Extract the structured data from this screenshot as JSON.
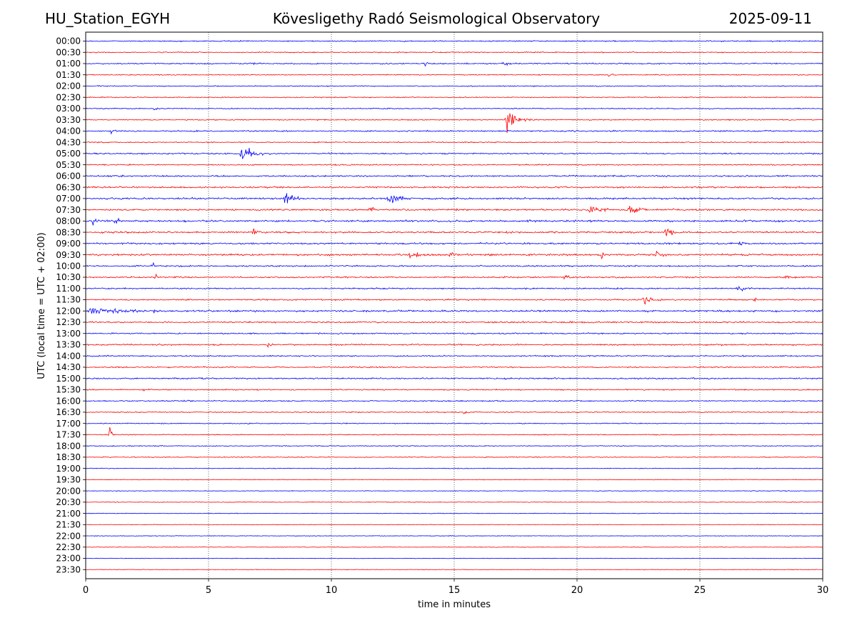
{
  "header": {
    "station": "HU_Station_EGYH",
    "title": "Kövesligethy Radó Seismological Observatory",
    "date": "2025-09-11"
  },
  "chart_data": {
    "type": "line",
    "title": "Kövesligethy Radó Seismological Observatory",
    "xlabel": "time in minutes",
    "ylabel": "UTC (local time = UTC + 02:00)",
    "xlim": [
      0,
      30
    ],
    "x_ticks": [
      0,
      5,
      10,
      15,
      20,
      25,
      30
    ],
    "grid_x": true,
    "colors": [
      "#0000ff",
      "#ff0000"
    ],
    "rows": [
      {
        "label": "00:00",
        "noise": 0.6,
        "events": []
      },
      {
        "label": "00:30",
        "noise": 0.55,
        "events": []
      },
      {
        "label": "01:00",
        "noise": 0.65,
        "events": [
          [
            13.8,
            0.35,
            1.6
          ],
          [
            17.0,
            0.6,
            1.4
          ],
          [
            6.7,
            0.4,
            1.3
          ]
        ]
      },
      {
        "label": "01:30",
        "noise": 0.5,
        "events": [
          [
            21.3,
            0.5,
            1.2
          ]
        ]
      },
      {
        "label": "02:00",
        "noise": 0.5,
        "events": []
      },
      {
        "label": "02:30",
        "noise": 0.5,
        "events": []
      },
      {
        "label": "03:00",
        "noise": 0.55,
        "events": [
          [
            2.8,
            0.4,
            1.2
          ]
        ]
      },
      {
        "label": "03:30",
        "noise": 0.55,
        "events": [
          [
            17.1,
            1.2,
            6.0
          ]
        ]
      },
      {
        "label": "04:00",
        "noise": 0.7,
        "events": [
          [
            1.0,
            0.8,
            1.3
          ]
        ]
      },
      {
        "label": "04:30",
        "noise": 0.55,
        "events": []
      },
      {
        "label": "05:00",
        "noise": 0.7,
        "events": [
          [
            6.3,
            1.5,
            5.0
          ]
        ]
      },
      {
        "label": "05:30",
        "noise": 0.6,
        "events": []
      },
      {
        "label": "06:00",
        "noise": 0.8,
        "events": []
      },
      {
        "label": "06:30",
        "noise": 0.8,
        "events": []
      },
      {
        "label": "07:00",
        "noise": 0.9,
        "events": [
          [
            8.1,
            1.5,
            2.2
          ],
          [
            12.3,
            1.5,
            2.8
          ]
        ]
      },
      {
        "label": "07:30",
        "noise": 0.85,
        "events": [
          [
            20.5,
            1.5,
            2.0
          ],
          [
            22.1,
            1.5,
            2.2
          ],
          [
            11.5,
            1.0,
            1.8
          ]
        ]
      },
      {
        "label": "08:00",
        "noise": 0.95,
        "events": [
          [
            0.3,
            1.2,
            2.0
          ],
          [
            1.2,
            0.8,
            2.2
          ]
        ]
      },
      {
        "label": "08:30",
        "noise": 0.9,
        "events": [
          [
            23.6,
            0.8,
            3.2
          ],
          [
            6.8,
            0.8,
            1.7
          ]
        ]
      },
      {
        "label": "09:00",
        "noise": 0.85,
        "events": [
          [
            26.6,
            0.5,
            1.6
          ]
        ]
      },
      {
        "label": "09:30",
        "noise": 0.95,
        "events": [
          [
            13.2,
            1.8,
            1.8
          ],
          [
            14.8,
            0.8,
            1.9
          ],
          [
            21.0,
            0.4,
            1.9
          ],
          [
            23.2,
            1.0,
            2.2
          ]
        ]
      },
      {
        "label": "10:00",
        "noise": 0.75,
        "events": [
          [
            2.7,
            0.4,
            1.6
          ]
        ]
      },
      {
        "label": "10:30",
        "noise": 0.75,
        "events": [
          [
            19.5,
            0.7,
            2.5
          ],
          [
            28.5,
            0.3,
            2.2
          ],
          [
            2.8,
            0.4,
            1.6
          ]
        ]
      },
      {
        "label": "11:00",
        "noise": 0.7,
        "events": [
          [
            26.5,
            1.2,
            1.5
          ]
        ]
      },
      {
        "label": "11:30",
        "noise": 0.7,
        "events": [
          [
            22.7,
            1.2,
            2.4
          ],
          [
            27.2,
            0.5,
            1.6
          ]
        ]
      },
      {
        "label": "12:00",
        "noise": 0.9,
        "events": [
          [
            0.1,
            5.5,
            1.6
          ],
          [
            2.8,
            0.6,
            1.6
          ]
        ]
      },
      {
        "label": "12:30",
        "noise": 0.75,
        "events": []
      },
      {
        "label": "13:00",
        "noise": 0.7,
        "events": []
      },
      {
        "label": "13:30",
        "noise": 0.75,
        "events": [
          [
            7.4,
            0.6,
            1.3
          ]
        ]
      },
      {
        "label": "14:00",
        "noise": 0.65,
        "events": []
      },
      {
        "label": "14:30",
        "noise": 0.65,
        "events": []
      },
      {
        "label": "15:00",
        "noise": 0.7,
        "events": []
      },
      {
        "label": "15:30",
        "noise": 0.6,
        "events": [
          [
            2.4,
            0.5,
            1.5
          ]
        ]
      },
      {
        "label": "16:00",
        "noise": 0.6,
        "events": [
          [
            4.0,
            0.4,
            1.3
          ]
        ]
      },
      {
        "label": "16:30",
        "noise": 0.55,
        "events": [
          [
            15.4,
            0.6,
            1.3
          ]
        ]
      },
      {
        "label": "17:00",
        "noise": 0.5,
        "events": []
      },
      {
        "label": "17:30",
        "noise": 0.5,
        "events": [
          [
            0.95,
            0.4,
            3.0
          ]
        ]
      },
      {
        "label": "18:00",
        "noise": 0.45,
        "events": []
      },
      {
        "label": "18:30",
        "noise": 0.45,
        "events": []
      },
      {
        "label": "19:00",
        "noise": 0.4,
        "events": []
      },
      {
        "label": "19:30",
        "noise": 0.35,
        "events": []
      },
      {
        "label": "20:00",
        "noise": 0.35,
        "events": []
      },
      {
        "label": "20:30",
        "noise": 0.35,
        "events": []
      },
      {
        "label": "21:00",
        "noise": 0.35,
        "events": []
      },
      {
        "label": "21:30",
        "noise": 0.3,
        "events": []
      },
      {
        "label": "22:00",
        "noise": 0.3,
        "events": []
      },
      {
        "label": "22:30",
        "noise": 0.3,
        "events": []
      },
      {
        "label": "23:00",
        "noise": 0.3,
        "events": []
      },
      {
        "label": "23:30",
        "noise": 0.3,
        "events": []
      }
    ]
  }
}
